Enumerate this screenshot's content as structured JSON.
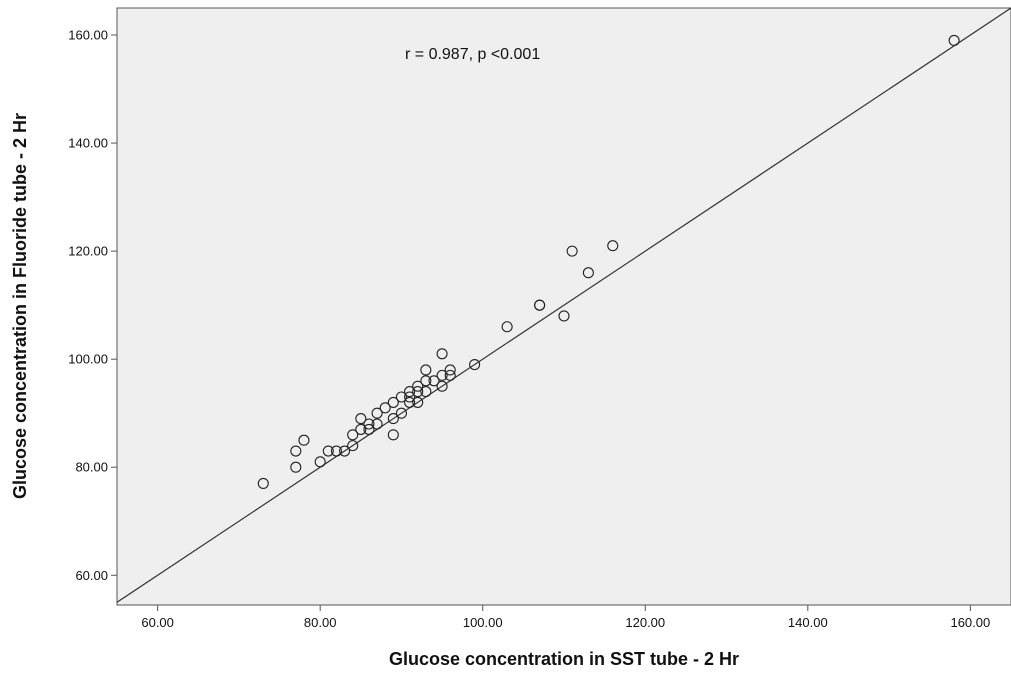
{
  "chart_data": {
    "type": "scatter",
    "title": "",
    "xlabel": "Glucose concentration in SST tube - 2 Hr",
    "ylabel": "Glucose concentration in Fluoride tube - 2 Hr",
    "annotation": "r = 0.987, p <0.001",
    "xlim": [
      55,
      165
    ],
    "ylim": [
      54.5,
      165
    ],
    "x_ticks": [
      60,
      80,
      100,
      120,
      140,
      160
    ],
    "y_ticks": [
      60,
      80,
      100,
      120,
      140,
      160
    ],
    "x_tick_labels": [
      "60.00",
      "80.00",
      "100.00",
      "120.00",
      "140.00",
      "160.00"
    ],
    "y_tick_labels": [
      "60.00",
      "80.00",
      "100.00",
      "120.00",
      "140.00",
      "160.00"
    ],
    "grid": false,
    "reference_line": {
      "slope": 1,
      "intercept": 0
    },
    "colors": {
      "plot_background": "#efefef",
      "marker": "#222222",
      "line": "#333333"
    },
    "points": [
      [
        73,
        77
      ],
      [
        77,
        80
      ],
      [
        77,
        83
      ],
      [
        78,
        85
      ],
      [
        80,
        81
      ],
      [
        81,
        83
      ],
      [
        82,
        83
      ],
      [
        83,
        83
      ],
      [
        84,
        84
      ],
      [
        84,
        86
      ],
      [
        85,
        87
      ],
      [
        85,
        89
      ],
      [
        86,
        87
      ],
      [
        86,
        88
      ],
      [
        87,
        88
      ],
      [
        87,
        90
      ],
      [
        88,
        91
      ],
      [
        89,
        86
      ],
      [
        89,
        89
      ],
      [
        89,
        92
      ],
      [
        90,
        90
      ],
      [
        90,
        93
      ],
      [
        91,
        92
      ],
      [
        91,
        93
      ],
      [
        91,
        94
      ],
      [
        92,
        92
      ],
      [
        92,
        94
      ],
      [
        92,
        95
      ],
      [
        93,
        94
      ],
      [
        93,
        96
      ],
      [
        93,
        98
      ],
      [
        94,
        96
      ],
      [
        95,
        95
      ],
      [
        95,
        97
      ],
      [
        95,
        101
      ],
      [
        96,
        97
      ],
      [
        96,
        98
      ],
      [
        99,
        99
      ],
      [
        103,
        106
      ],
      [
        107,
        110
      ],
      [
        107,
        110
      ],
      [
        110,
        108
      ],
      [
        111,
        120
      ],
      [
        113,
        116
      ],
      [
        116,
        121
      ],
      [
        158,
        159
      ]
    ]
  }
}
